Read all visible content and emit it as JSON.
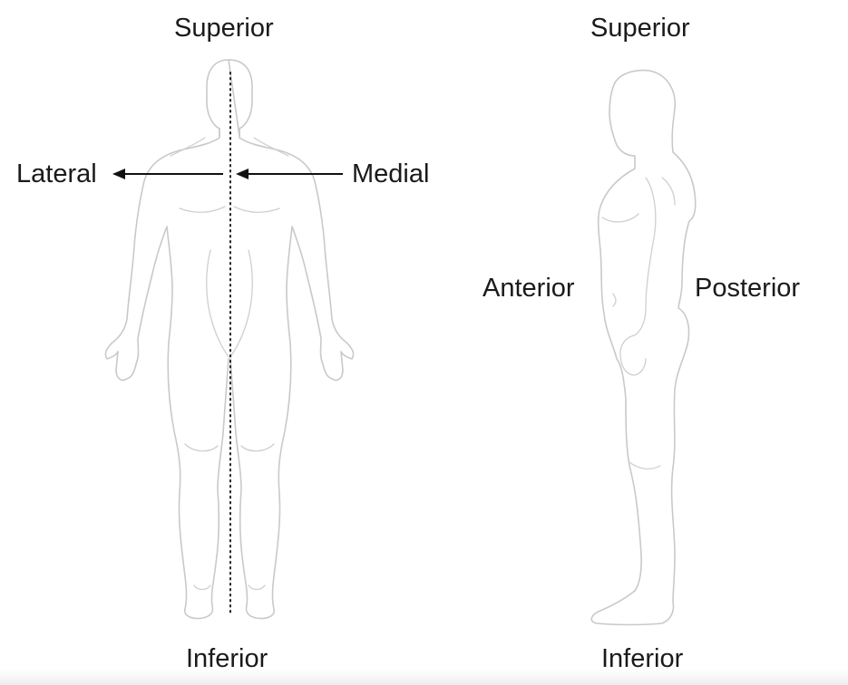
{
  "diagram": {
    "front_view": {
      "label_top": "Superior",
      "label_bottom": "Inferior",
      "label_left": "Lateral",
      "label_right": "Medial"
    },
    "side_view": {
      "label_top": "Superior",
      "label_bottom": "Inferior",
      "label_left": "Anterior",
      "label_right": "Posterior"
    },
    "colors": {
      "outline": "#c9c9c9",
      "text": "#1a1a1a",
      "arrow": "#111111"
    }
  }
}
